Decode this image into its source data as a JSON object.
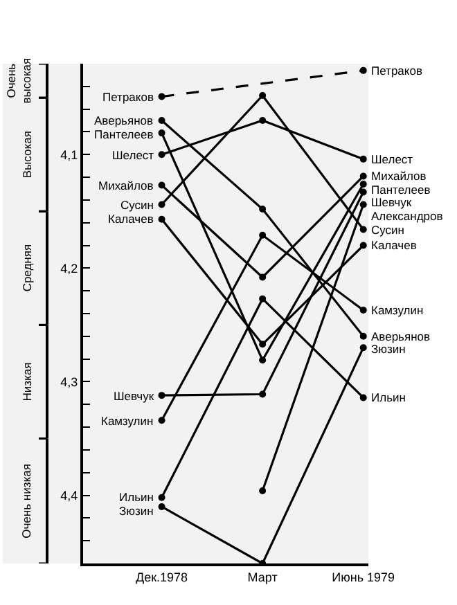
{
  "chart_data": {
    "type": "line",
    "categories": [
      "Дек.1978",
      "Март",
      "Июнь 1979"
    ],
    "ylim": [
      4.46,
      4.02
    ],
    "yticks": [
      {
        "value": 4.04,
        "label": null
      },
      {
        "value": 4.06,
        "label": null
      },
      {
        "value": 4.08,
        "label": null
      },
      {
        "value": 4.1,
        "label": "4,1"
      },
      {
        "value": 4.12,
        "label": null
      },
      {
        "value": 4.14,
        "label": null
      },
      {
        "value": 4.16,
        "label": null
      },
      {
        "value": 4.18,
        "label": null
      },
      {
        "value": 4.2,
        "label": "4,2"
      },
      {
        "value": 4.22,
        "label": null
      },
      {
        "value": 4.24,
        "label": null
      },
      {
        "value": 4.26,
        "label": null
      },
      {
        "value": 4.28,
        "label": null
      },
      {
        "value": 4.3,
        "label": "4,3"
      },
      {
        "value": 4.32,
        "label": null
      },
      {
        "value": 4.34,
        "label": null
      },
      {
        "value": 4.36,
        "label": null
      },
      {
        "value": 4.38,
        "label": null
      },
      {
        "value": 4.4,
        "label": "4,4"
      },
      {
        "value": 4.42,
        "label": null
      },
      {
        "value": 4.44,
        "label": null
      }
    ],
    "bands": [
      {
        "axis": "y",
        "from": 4.02,
        "to": 4.05,
        "label": "Очень\nвысокая",
        "color": "#f2f2f2"
      },
      {
        "axis": "y",
        "from": 4.05,
        "to": 4.15,
        "label": "Высокая",
        "color": "#f2f2f2"
      },
      {
        "axis": "y",
        "from": 4.15,
        "to": 4.25,
        "label": "Средняя",
        "color": "#f2f2f2"
      },
      {
        "axis": "y",
        "from": 4.25,
        "to": 4.35,
        "label": "Низкая",
        "color": "#f2f2f2"
      },
      {
        "axis": "y",
        "from": 4.35,
        "to": 4.46,
        "label": "Очень низкая",
        "color": "#f2f2f2"
      }
    ],
    "marker": "circle",
    "series": [
      {
        "name": "Петраков",
        "color": "#000000",
        "line_style": "dashed",
        "values": [
          4.049,
          null,
          4.026
        ]
      },
      {
        "name": "Аверьянов",
        "color": "#000000",
        "values": [
          4.07,
          4.148,
          4.26
        ]
      },
      {
        "name": "Пантелеев",
        "color": "#000000",
        "values": [
          4.081,
          4.281,
          4.126
        ]
      },
      {
        "name": "Шелест",
        "color": "#000000",
        "values": [
          4.1,
          4.07,
          4.104
        ]
      },
      {
        "name": "Михайлов",
        "color": "#000000",
        "values": [
          4.127,
          4.208,
          4.119
        ]
      },
      {
        "name": "Сусин",
        "color": "#000000",
        "values": [
          4.144,
          4.048,
          4.166
        ]
      },
      {
        "name": "Калачев",
        "color": "#000000",
        "values": [
          4.157,
          4.267,
          4.18
        ]
      },
      {
        "name": "Шевчук",
        "color": "#000000",
        "values": [
          4.312,
          4.311,
          4.133
        ]
      },
      {
        "name": "Камзулин",
        "color": "#000000",
        "values": [
          4.334,
          4.171,
          4.237
        ]
      },
      {
        "name": "Ильин",
        "color": "#000000",
        "values": [
          4.402,
          4.227,
          4.314
        ]
      },
      {
        "name": "Зюзин",
        "color": "#000000",
        "values": [
          4.41,
          4.46,
          4.27
        ]
      },
      {
        "name": "Александров",
        "color": "#000000",
        "values": [
          null,
          4.396,
          4.144
        ]
      }
    ]
  }
}
